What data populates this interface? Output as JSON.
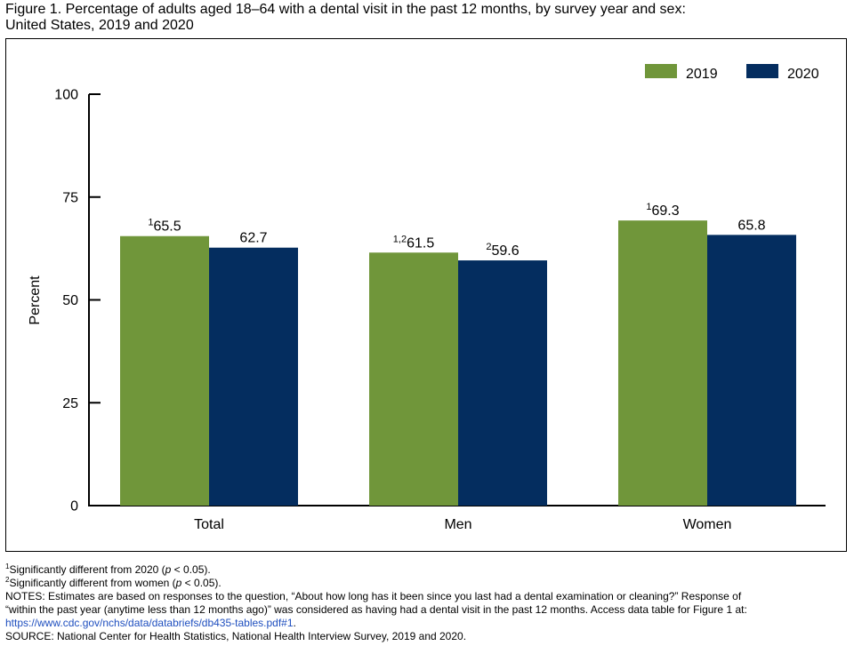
{
  "figure": {
    "title_line1": "Figure 1. Percentage of adults aged 18–64 with a dental visit in the past 12 months, by survey year and sex:",
    "title_line2": "United States, 2019 and 2020"
  },
  "chart_data": {
    "type": "bar",
    "categories": [
      "Total",
      "Men",
      "Women"
    ],
    "series": [
      {
        "name": "2019",
        "color": "#70963a",
        "values": [
          65.5,
          61.5,
          69.3
        ],
        "label_sups": [
          "1",
          "1,2",
          "1"
        ]
      },
      {
        "name": "2020",
        "color": "#042d5f",
        "values": [
          62.7,
          59.6,
          65.8
        ],
        "label_sups": [
          "",
          "2",
          ""
        ]
      }
    ],
    "ylabel": "Percent",
    "xlabel": "",
    "ylim": [
      0,
      100
    ],
    "yticks": [
      0,
      25,
      50,
      75,
      100
    ],
    "legend_placement": "top-right",
    "grid": false
  },
  "notes": {
    "fn1_sup": "1",
    "fn1_text": "Significantly different from 2020 (",
    "fn1_p": "p",
    "fn1_tail": " < 0.05).",
    "fn2_sup": "2",
    "fn2_text": "Significantly different from women (",
    "fn2_p": "p",
    "fn2_tail": " < 0.05).",
    "notes_line1": "NOTES: Estimates are based on responses to the question, “About how long has it been since you last had a dental examination or cleaning?” Response of",
    "notes_line2": "“within the past year (anytime less than 12 months ago)” was considered as having had a dental visit in the past 12 months. Access data table for Figure 1 at:",
    "link": "https://www.cdc.gov/nchs/data/databriefs/db435-tables.pdf#1",
    "link_tail": ".",
    "source": "SOURCE: National Center for Health Statistics, National Health Interview Survey, 2019 and 2020."
  }
}
